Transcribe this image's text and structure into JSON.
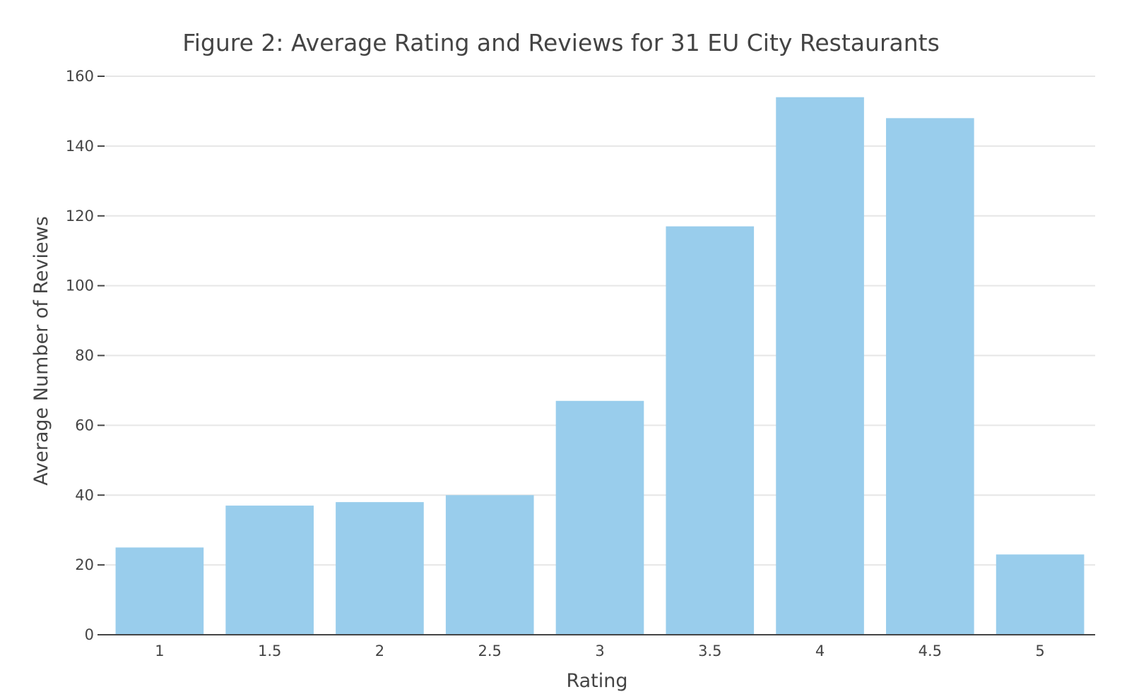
{
  "chart_data": {
    "type": "bar",
    "title": "Figure 2: Average Rating and Reviews for 31 EU City Restaurants",
    "xlabel": "Rating",
    "ylabel": "Average Number of Reviews",
    "categories": [
      "1",
      "1.5",
      "2",
      "2.5",
      "3",
      "3.5",
      "4",
      "4.5",
      "5"
    ],
    "values": [
      25,
      37,
      38,
      40,
      67,
      117,
      154,
      148,
      23
    ],
    "ylim": [
      0,
      160
    ],
    "yticks": [
      0,
      20,
      40,
      60,
      80,
      100,
      120,
      140,
      160
    ],
    "grid": true,
    "bar_color": "#99cdec",
    "grid_color": "#e6e6e6",
    "text_color": "#444444"
  }
}
